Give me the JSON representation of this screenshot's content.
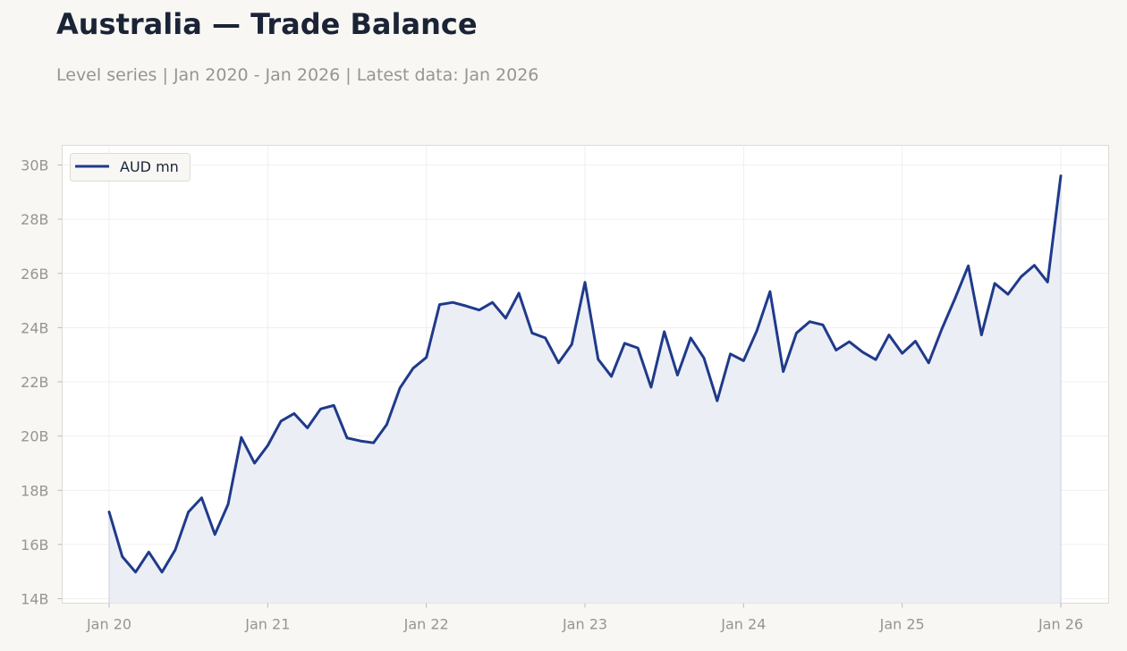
{
  "header": {
    "title": "Australia — Trade Balance",
    "subtitle": "Level series | Jan 2020 - Jan 2026 | Latest data: Jan 2026"
  },
  "colors": {
    "line": "#1f3a8a",
    "fill": "#eceef5",
    "grid": "#ebebeb",
    "axis_text": "#979591"
  },
  "chart_data": {
    "type": "line",
    "title": "Australia — Trade Balance",
    "subtitle": "Level series | Jan 2020 - Jan 2026 | Latest data: Jan 2026",
    "x_start": "2020-01",
    "frequency": "monthly",
    "y_unit_ticks": [
      "14B",
      "16B",
      "18B",
      "20B",
      "22B",
      "24B",
      "26B",
      "28B",
      "30B"
    ],
    "y_tick_values": [
      14,
      16,
      18,
      20,
      22,
      24,
      26,
      28,
      30
    ],
    "x_tick_labels": [
      "Jan 20",
      "Jan 21",
      "Jan 22",
      "Jan 23",
      "Jan 24",
      "Jan 25",
      "Jan 26"
    ],
    "x_tick_dates": [
      "2020-01",
      "2021-01",
      "2022-01",
      "2023-01",
      "2024-01",
      "2025-01",
      "2026-01"
    ],
    "ylim": [
      13.8,
      30.75
    ],
    "grid": true,
    "area_fill": true,
    "legend": {
      "position": "top-left"
    },
    "series": [
      {
        "name": "AUD mn",
        "unit": "B",
        "values": [
          17.2,
          15.55,
          14.98,
          15.72,
          14.98,
          15.8,
          17.2,
          17.72,
          16.37,
          17.48,
          19.95,
          19.0,
          19.65,
          20.55,
          20.83,
          20.3,
          21.0,
          21.13,
          19.93,
          19.82,
          19.75,
          20.42,
          21.77,
          22.5,
          22.9,
          24.85,
          24.93,
          24.8,
          24.65,
          24.93,
          24.35,
          25.27,
          23.8,
          23.62,
          22.7,
          23.38,
          25.67,
          22.83,
          22.2,
          23.42,
          23.25,
          21.8,
          23.85,
          22.25,
          23.62,
          22.88,
          21.3,
          23.03,
          22.78,
          23.88,
          25.33,
          22.38,
          23.8,
          24.22,
          24.1,
          23.17,
          23.48,
          23.1,
          22.82,
          23.73,
          23.05,
          23.5,
          22.7,
          23.95,
          25.08,
          26.28,
          23.73,
          25.63,
          25.23,
          25.88,
          26.3,
          25.68,
          29.6
        ]
      }
    ]
  }
}
